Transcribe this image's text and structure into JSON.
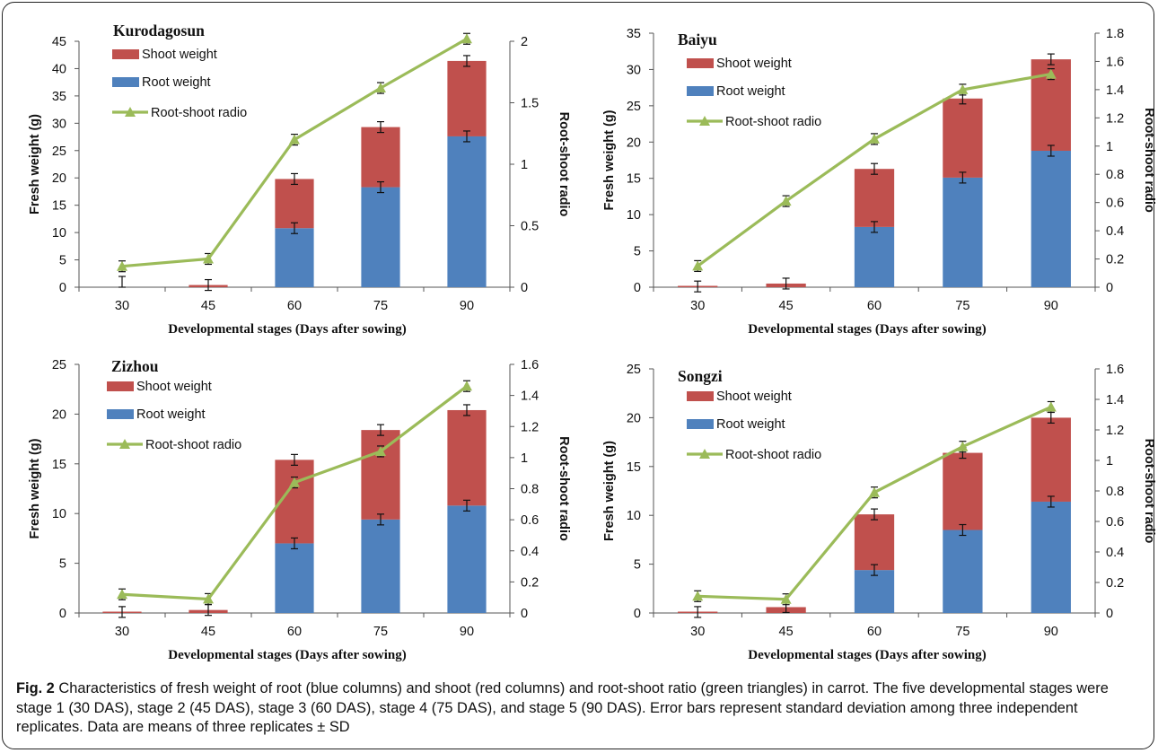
{
  "figure": {
    "caption_label": "Fig. 2",
    "caption_text": "Characteristics of fresh weight of root (blue columns) and shoot (red columns) and root-shoot ratio (green triangles) in carrot. The five developmental stages were stage 1 (30 DAS), stage 2 (45 DAS), stage 3 (60 DAS), stage 4 (75 DAS), and stage 5 (90 DAS). Error bars represent standard deviation among three independent replicates. Data are means of three replicates ± SD"
  },
  "colors": {
    "root": "#4f81bd",
    "shoot": "#c0504d",
    "ratio": "#9bbb59"
  },
  "chart_data": [
    {
      "type": "bar",
      "title": "Kurodagosun",
      "categories": [
        "30",
        "45",
        "60",
        "75",
        "90"
      ],
      "xlabel": "Developmental stages (Days after sowing)",
      "ylabel": "Fresh weight (g)",
      "y2label": "Root-shoot radio",
      "ylim": [
        0,
        45
      ],
      "yticks": [
        0,
        5,
        10,
        15,
        20,
        25,
        30,
        35,
        40,
        45
      ],
      "y2lim": [
        0,
        2
      ],
      "y2ticks": [
        "0",
        "0.5",
        "1",
        "1.5",
        "2"
      ],
      "stacked": true,
      "series": [
        {
          "name": "Shoot weight",
          "values": [
            0,
            0.4,
            9.0,
            11.0,
            13.8
          ],
          "kind": "bar"
        },
        {
          "name": "Root weight",
          "values": [
            0,
            0,
            10.8,
            18.3,
            27.6
          ],
          "kind": "bar"
        },
        {
          "name": "Root-shoot radio",
          "values": [
            0.17,
            0.23,
            1.2,
            1.62,
            2.02
          ],
          "kind": "line"
        }
      ],
      "legend": [
        "Shoot weight",
        "Root weight",
        "Root-shoot radio"
      ]
    },
    {
      "type": "bar",
      "title": "Baiyu",
      "categories": [
        "30",
        "45",
        "60",
        "75",
        "90"
      ],
      "xlabel": "Developmental stages (Days after sowing)",
      "ylabel": "Fresh weight (g)",
      "y2label": "Root-shoot radio",
      "ylim": [
        0,
        35
      ],
      "yticks": [
        0,
        5,
        10,
        15,
        20,
        25,
        30,
        35
      ],
      "y2lim": [
        0,
        1.8
      ],
      "y2ticks": [
        "0",
        "0.2",
        "0.4",
        "0.6",
        "0.8",
        "1",
        "1.2",
        "1.4",
        "1.6",
        "1.8"
      ],
      "stacked": true,
      "series": [
        {
          "name": "Shoot weight",
          "values": [
            0.1,
            0.5,
            8.0,
            10.9,
            12.6
          ],
          "kind": "bar"
        },
        {
          "name": "Root weight",
          "values": [
            0,
            0,
            8.3,
            15.1,
            18.8
          ],
          "kind": "bar"
        },
        {
          "name": "Root-shoot radio",
          "values": [
            0.15,
            0.61,
            1.05,
            1.4,
            1.51
          ],
          "kind": "line"
        }
      ],
      "legend": [
        "Shoot weight",
        "Root weight",
        "Root-shoot radio"
      ]
    },
    {
      "type": "bar",
      "title": "Zizhou",
      "categories": [
        "30",
        "45",
        "60",
        "75",
        "90"
      ],
      "xlabel": "Developmental stages (Days after sowing)",
      "ylabel": "Fresh weight (g)",
      "y2label": "Root-shoot radio",
      "ylim": [
        0,
        25
      ],
      "yticks": [
        0,
        5,
        10,
        15,
        20,
        25
      ],
      "y2lim": [
        0,
        1.6
      ],
      "y2ticks": [
        "0",
        "0.2",
        "0.4",
        "0.6",
        "0.8",
        "1",
        "1.2",
        "1.4",
        "1.6"
      ],
      "stacked": true,
      "series": [
        {
          "name": "Shoot weight",
          "values": [
            0.1,
            0.3,
            8.4,
            9.0,
            9.6
          ],
          "kind": "bar"
        },
        {
          "name": "Root weight",
          "values": [
            0,
            0,
            7.0,
            9.4,
            10.8
          ],
          "kind": "bar"
        },
        {
          "name": "Root-shoot radio",
          "values": [
            0.12,
            0.09,
            0.84,
            1.04,
            1.46
          ],
          "kind": "line"
        }
      ],
      "legend": [
        "Shoot weight",
        "Root weight",
        "Root-shoot radio"
      ]
    },
    {
      "type": "bar",
      "title": "Songzi",
      "categories": [
        "30",
        "45",
        "60",
        "75",
        "90"
      ],
      "xlabel": "Developmental stages (Days after sowing)",
      "ylabel": "Fresh weight (g)",
      "y2label": "Root-shoot radio",
      "ylim": [
        0,
        25
      ],
      "yticks": [
        0,
        5,
        10,
        15,
        20,
        25
      ],
      "y2lim": [
        0,
        1.6
      ],
      "y2ticks": [
        "0",
        "0.2",
        "0.4",
        "0.6",
        "0.8",
        "1",
        "1.2",
        "1.4",
        "1.6"
      ],
      "stacked": true,
      "series": [
        {
          "name": "Shoot weight",
          "values": [
            0.1,
            0.6,
            5.7,
            7.9,
            8.6
          ],
          "kind": "bar"
        },
        {
          "name": "Root weight",
          "values": [
            0,
            0,
            4.4,
            8.5,
            11.4
          ],
          "kind": "bar"
        },
        {
          "name": "Root-shoot radio",
          "values": [
            0.11,
            0.09,
            0.79,
            1.09,
            1.35
          ],
          "kind": "line"
        }
      ],
      "legend": [
        "Shoot weight",
        "Root weight",
        "Root-shoot radio"
      ]
    }
  ]
}
